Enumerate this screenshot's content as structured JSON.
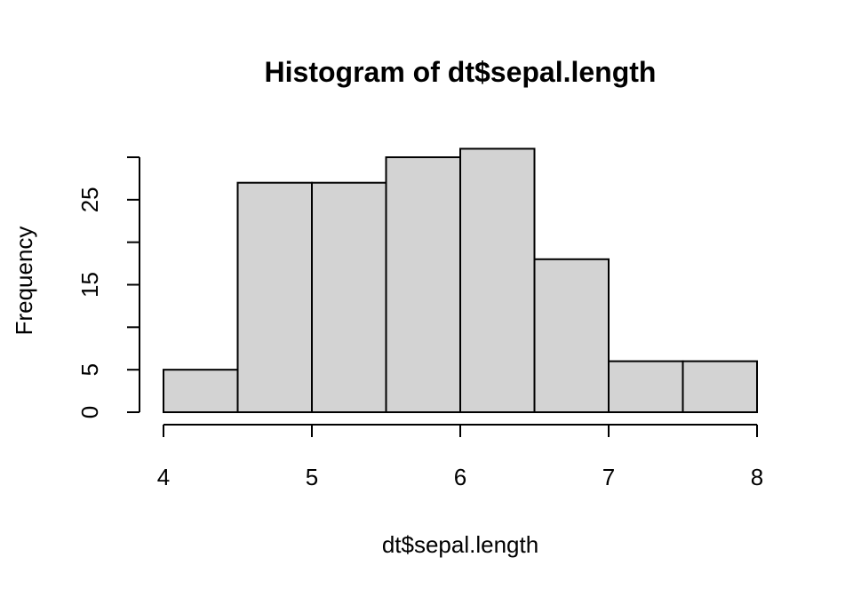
{
  "chart_data": {
    "type": "bar",
    "title": "Histogram of dt$sepal.length",
    "xlabel": "dt$sepal.length",
    "ylabel": "Frequency",
    "bins": [
      {
        "from": 4.0,
        "to": 4.5,
        "count": 5
      },
      {
        "from": 4.5,
        "to": 5.0,
        "count": 27
      },
      {
        "from": 5.0,
        "to": 5.5,
        "count": 27
      },
      {
        "from": 5.5,
        "to": 6.0,
        "count": 30
      },
      {
        "from": 6.0,
        "to": 6.5,
        "count": 31
      },
      {
        "from": 6.5,
        "to": 7.0,
        "count": 18
      },
      {
        "from": 7.0,
        "to": 7.5,
        "count": 6
      },
      {
        "from": 7.5,
        "to": 8.0,
        "count": 6
      }
    ],
    "x_ticks": [
      4,
      5,
      6,
      7,
      8
    ],
    "y_ticks_major": [
      0,
      5,
      15,
      25
    ],
    "y_ticks_minor": [
      10,
      20,
      30
    ],
    "xlim": [
      4,
      8
    ],
    "ylim": [
      0,
      31
    ],
    "grid": false,
    "colors": {
      "bar_fill": "#d3d3d3",
      "bar_stroke": "#000000",
      "axis": "#000000"
    }
  }
}
